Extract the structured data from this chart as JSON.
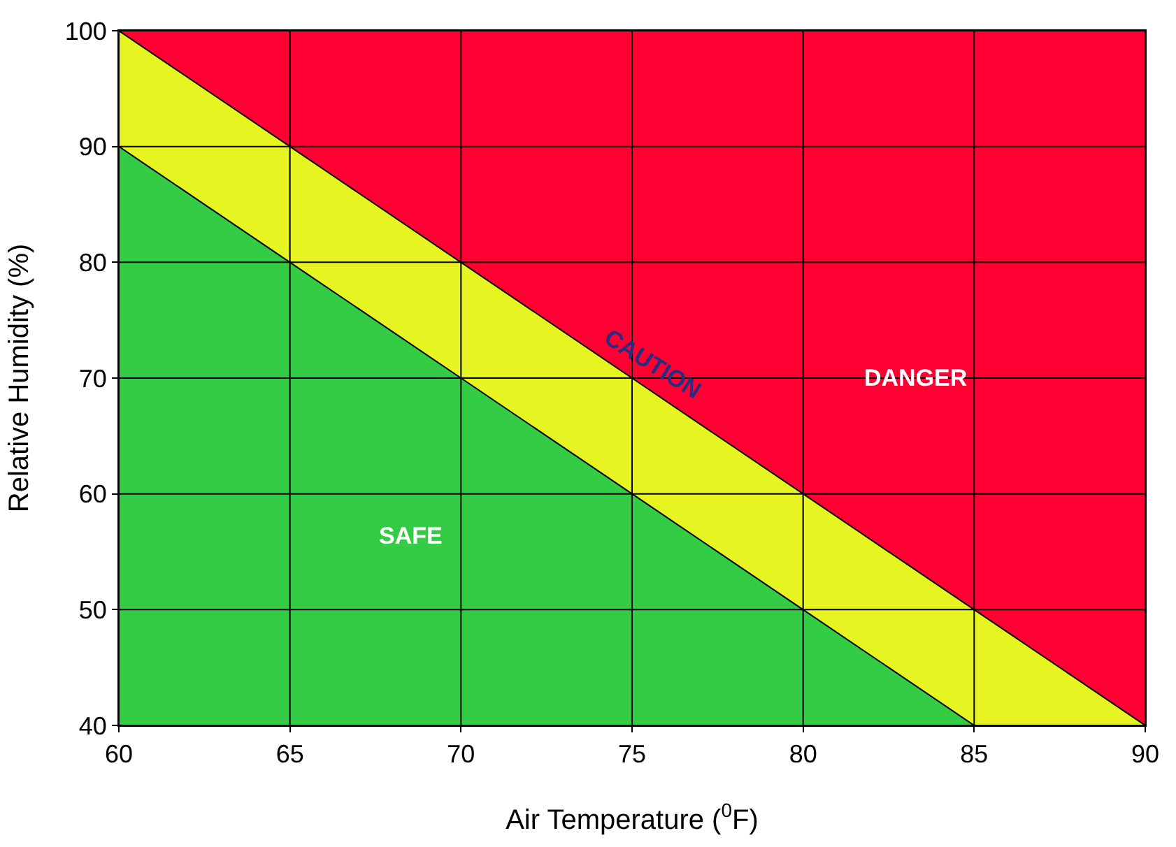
{
  "chart_data": {
    "type": "area",
    "xlabel": "Air Temperature ($^{0}$F)",
    "ylabel": "Relative Humidity (%)",
    "x": [
      60,
      65,
      70,
      75,
      80,
      85,
      90
    ],
    "series": [
      {
        "name": "SAFE",
        "color": "#33cc44",
        "values": [
          90,
          80,
          70,
          60,
          50,
          40,
          40
        ]
      },
      {
        "name": "CAUTION",
        "color": "#e6f522",
        "values": [
          100,
          90,
          80,
          70,
          60,
          50,
          40
        ]
      }
    ],
    "bands": [
      {
        "axis": "y",
        "from": 40,
        "to": 100,
        "label": "DANGER",
        "color": "#ff0033"
      }
    ],
    "xlim": [
      60,
      90
    ],
    "xticks": [
      60,
      65,
      70,
      75,
      80,
      85,
      90
    ],
    "ylim": [
      40,
      100
    ],
    "yticks": [
      40,
      50,
      60,
      70,
      80,
      90,
      100
    ],
    "grid": true,
    "legend": false
  }
}
